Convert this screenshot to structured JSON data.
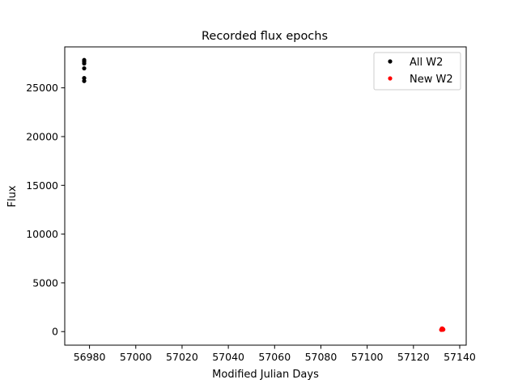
{
  "chart_data": {
    "type": "scatter",
    "title": "Recorded flux epochs",
    "xlabel": "Modified Julian Days",
    "ylabel": "Flux",
    "xlim": [
      56969.3,
      57142.8
    ],
    "ylim": [
      -1390,
      29200
    ],
    "xticks": [
      56980,
      57000,
      57020,
      57040,
      57060,
      57080,
      57100,
      57120,
      57140
    ],
    "yticks": [
      0,
      5000,
      10000,
      15000,
      20000,
      25000
    ],
    "grid": false,
    "legend_position": "top-right",
    "series": [
      {
        "name": "All W2",
        "color": "#000000",
        "points": [
          [
            56977.7,
            27850
          ],
          [
            56977.7,
            27700
          ],
          [
            56977.7,
            27500
          ],
          [
            56977.7,
            27000
          ],
          [
            56977.7,
            26000
          ],
          [
            56977.7,
            25700
          ],
          [
            57132.3,
            300
          ],
          [
            57132.5,
            250
          ],
          [
            57132.7,
            200
          ]
        ]
      },
      {
        "name": "New W2",
        "color": "#ff0000",
        "points": [
          [
            57132.0,
            180
          ],
          [
            57132.2,
            250
          ],
          [
            57132.3,
            300
          ],
          [
            57132.4,
            220
          ],
          [
            57132.5,
            260
          ],
          [
            57132.6,
            200
          ],
          [
            57132.7,
            280
          ],
          [
            57132.8,
            230
          ],
          [
            57132.9,
            210
          ],
          [
            57132.4,
            320
          ]
        ]
      }
    ]
  }
}
